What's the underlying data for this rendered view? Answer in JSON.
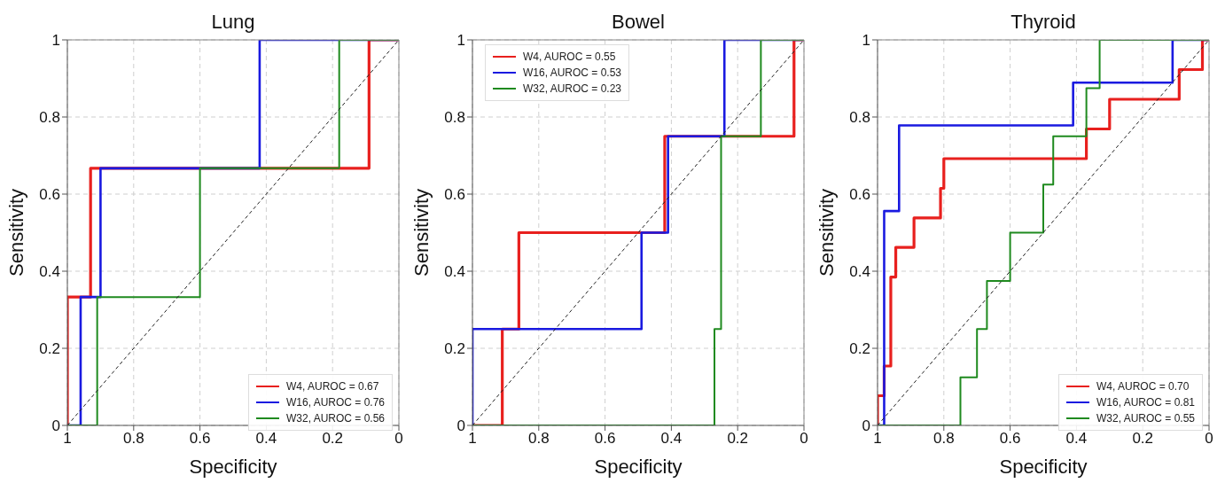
{
  "chart_data": [
    {
      "type": "line",
      "title": "Lung",
      "xlabel": "Specificity",
      "ylabel": "Sensitivity",
      "xlim": [
        1,
        0
      ],
      "ylim": [
        0,
        1
      ],
      "xticks": [
        1,
        0.8,
        0.6,
        0.4,
        0.2,
        0
      ],
      "yticks": [
        0,
        0.2,
        0.4,
        0.6,
        0.8,
        1
      ],
      "grid": true,
      "legend": "bottom right",
      "marker": "none",
      "series": [
        {
          "name": "W4, AUROC = 0.67",
          "color": "#e8201e",
          "x": [
            1,
            1,
            0.93,
            0.93,
            0.09,
            0.09,
            0
          ],
          "values": [
            0,
            0.333,
            0.333,
            0.667,
            0.667,
            1,
            1
          ]
        },
        {
          "name": "W16, AUROC = 0.76",
          "color": "#1a1ae0",
          "x": [
            1,
            0.96,
            0.96,
            0.9,
            0.9,
            0.42,
            0.42,
            0
          ],
          "values": [
            0,
            0,
            0.333,
            0.333,
            0.667,
            0.667,
            1,
            1
          ]
        },
        {
          "name": "W32, AUROC = 0.56",
          "color": "#1f8a1f",
          "x": [
            1,
            0.91,
            0.91,
            0.6,
            0.6,
            0.18,
            0.18,
            0
          ],
          "values": [
            0,
            0,
            0.333,
            0.333,
            0.667,
            0.667,
            1,
            1
          ]
        },
        {
          "type": "line",
          "color": "#222222",
          "line_style": "dashed",
          "x": [
            1,
            0
          ],
          "values": [
            0,
            1
          ]
        }
      ]
    },
    {
      "type": "line",
      "title": "Bowel",
      "xlabel": "Specificity",
      "ylabel": "Sensitivity",
      "xlim": [
        1,
        0
      ],
      "ylim": [
        0,
        1
      ],
      "xticks": [
        1,
        0.8,
        0.6,
        0.4,
        0.2,
        0
      ],
      "yticks": [
        0,
        0.2,
        0.4,
        0.6,
        0.8,
        1
      ],
      "grid": true,
      "legend": "top left",
      "marker": "none",
      "series": [
        {
          "name": "W4, AUROC = 0.55",
          "color": "#e8201e",
          "x": [
            1,
            0.91,
            0.91,
            0.86,
            0.86,
            0.42,
            0.42,
            0.03,
            0.03,
            0
          ],
          "values": [
            0,
            0,
            0.25,
            0.25,
            0.5,
            0.5,
            0.75,
            0.75,
            1,
            1
          ]
        },
        {
          "name": "W16, AUROC = 0.53",
          "color": "#1a1ae0",
          "x": [
            1,
            1,
            0.49,
            0.49,
            0.41,
            0.41,
            0.24,
            0.24,
            0
          ],
          "values": [
            0,
            0.25,
            0.25,
            0.5,
            0.5,
            0.75,
            0.75,
            1,
            1
          ]
        },
        {
          "name": "W32, AUROC = 0.23",
          "color": "#1f8a1f",
          "x": [
            1,
            0.27,
            0.27,
            0.25,
            0.25,
            0.13,
            0.13,
            0
          ],
          "values": [
            0,
            0,
            0.25,
            0.25,
            0.75,
            0.75,
            1,
            1
          ]
        },
        {
          "type": "line",
          "color": "#222222",
          "line_style": "dashed",
          "x": [
            1,
            0
          ],
          "values": [
            0,
            1
          ]
        }
      ]
    },
    {
      "type": "line",
      "title": "Thyroid",
      "xlabel": "Specificity",
      "ylabel": "Sensitivity",
      "xlim": [
        1,
        0
      ],
      "ylim": [
        0,
        1
      ],
      "xticks": [
        1,
        0.8,
        0.6,
        0.4,
        0.2,
        0
      ],
      "yticks": [
        0,
        0.2,
        0.4,
        0.6,
        0.8,
        1
      ],
      "grid": true,
      "legend": "bottom right",
      "marker": "none",
      "series": [
        {
          "name": "W4, AUROC = 0.70",
          "color": "#e8201e",
          "x": [
            1,
            1,
            0.98,
            0.98,
            0.96,
            0.96,
            0.945,
            0.945,
            0.89,
            0.89,
            0.81,
            0.81,
            0.8,
            0.8,
            0.37,
            0.37,
            0.3,
            0.3,
            0.09,
            0.09,
            0.02,
            0.02,
            0
          ],
          "values": [
            0,
            0.077,
            0.077,
            0.154,
            0.154,
            0.385,
            0.385,
            0.462,
            0.462,
            0.538,
            0.538,
            0.615,
            0.615,
            0.692,
            0.692,
            0.769,
            0.769,
            0.846,
            0.846,
            0.923,
            0.923,
            1,
            1
          ]
        },
        {
          "name": "W16, AUROC = 0.81",
          "color": "#1a1ae0",
          "x": [
            1,
            0.98,
            0.98,
            0.935,
            0.935,
            0.41,
            0.41,
            0.11,
            0.11,
            0
          ],
          "values": [
            0,
            0,
            0.556,
            0.556,
            0.778,
            0.778,
            0.889,
            0.889,
            1,
            1
          ]
        },
        {
          "name": "W32, AUROC = 0.55",
          "color": "#1f8a1f",
          "x": [
            1,
            0.75,
            0.75,
            0.7,
            0.7,
            0.67,
            0.67,
            0.6,
            0.6,
            0.5,
            0.5,
            0.47,
            0.47,
            0.37,
            0.37,
            0.33,
            0.33,
            0
          ],
          "values": [
            0,
            0,
            0.125,
            0.125,
            0.25,
            0.25,
            0.375,
            0.375,
            0.5,
            0.5,
            0.625,
            0.625,
            0.75,
            0.75,
            0.875,
            0.875,
            1,
            1
          ]
        },
        {
          "type": "line",
          "color": "#222222",
          "line_style": "dashed",
          "x": [
            1,
            0
          ],
          "values": [
            0,
            1
          ]
        }
      ]
    }
  ]
}
